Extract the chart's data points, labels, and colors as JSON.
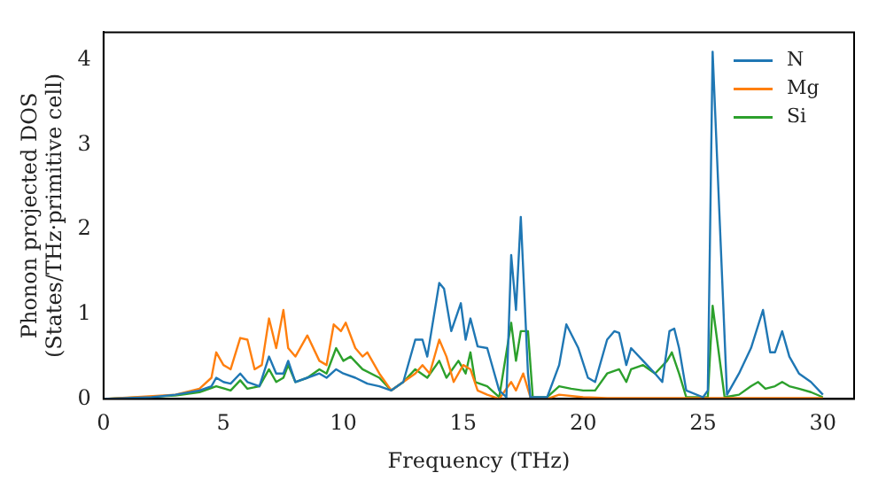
{
  "chart_data": {
    "type": "line",
    "xlabel": "Frequency (THz)",
    "ylabel": "Phonon projected DOS (States/THz·primitive cell)",
    "xlim": [
      0,
      31.3
    ],
    "ylim": [
      0,
      4.33
    ],
    "xticks": [
      0,
      5,
      10,
      15,
      20,
      25,
      30
    ],
    "yticks": [
      0,
      1,
      2,
      3,
      4
    ],
    "grid": false,
    "legend": "top right",
    "marker": "none",
    "line_style": "solid",
    "series": [
      {
        "name": "N",
        "color": "#1f77b4",
        "x": [
          0,
          2,
          3,
          4,
          4.5,
          4.7,
          5,
          5.3,
          5.7,
          6,
          6.5,
          6.9,
          7.2,
          7.5,
          7.7,
          8,
          8.5,
          9,
          9.3,
          9.7,
          10,
          10.5,
          11,
          11.5,
          12,
          12.5,
          13,
          13.3,
          13.5,
          14,
          14.2,
          14.5,
          14.9,
          15.1,
          15.3,
          15.6,
          16,
          16.3,
          16.5,
          16.8,
          17,
          17.2,
          17.4,
          17.7,
          17.8,
          18.5,
          19,
          19.3,
          19.8,
          20.2,
          20.5,
          21,
          21.3,
          21.5,
          21.8,
          22,
          22.5,
          23,
          23.3,
          23.6,
          23.8,
          24,
          24.3,
          25,
          25.2,
          25.4,
          26,
          26.5,
          27,
          27.5,
          27.8,
          28,
          28.3,
          28.6,
          29,
          29.5,
          30
        ],
        "values": [
          0,
          0.02,
          0.05,
          0.1,
          0.15,
          0.25,
          0.2,
          0.18,
          0.3,
          0.2,
          0.15,
          0.5,
          0.3,
          0.3,
          0.45,
          0.2,
          0.25,
          0.3,
          0.25,
          0.35,
          0.3,
          0.25,
          0.18,
          0.15,
          0.1,
          0.2,
          0.7,
          0.7,
          0.5,
          1.37,
          1.3,
          0.8,
          1.13,
          0.7,
          0.95,
          0.62,
          0.6,
          0.3,
          0.1,
          0.02,
          1.7,
          1.05,
          2.15,
          0.3,
          0.02,
          0.02,
          0.4,
          0.88,
          0.6,
          0.25,
          0.2,
          0.7,
          0.8,
          0.78,
          0.4,
          0.6,
          0.45,
          0.3,
          0.2,
          0.8,
          0.83,
          0.6,
          0.1,
          0.02,
          0.1,
          4.1,
          0.05,
          0.3,
          0.6,
          1.05,
          0.55,
          0.55,
          0.8,
          0.5,
          0.3,
          0.2,
          0.05
        ]
      },
      {
        "name": "Mg",
        "color": "#ff7f0e",
        "x": [
          0,
          3,
          4,
          4.5,
          4.7,
          5,
          5.3,
          5.7,
          6,
          6.3,
          6.6,
          6.9,
          7.2,
          7.5,
          7.7,
          8,
          8.5,
          9,
          9.3,
          9.6,
          9.9,
          10.1,
          10.5,
          10.8,
          11,
          11.5,
          12,
          12.5,
          13,
          13.3,
          13.6,
          14,
          14.3,
          14.6,
          15,
          15.3,
          15.6,
          16,
          16.5,
          17,
          17.2,
          17.5,
          17.8,
          18.5,
          19,
          20,
          21,
          30
        ],
        "values": [
          0,
          0.05,
          0.12,
          0.25,
          0.55,
          0.4,
          0.35,
          0.72,
          0.7,
          0.35,
          0.4,
          0.95,
          0.6,
          1.05,
          0.6,
          0.5,
          0.75,
          0.45,
          0.4,
          0.88,
          0.8,
          0.9,
          0.6,
          0.5,
          0.55,
          0.3,
          0.1,
          0.2,
          0.3,
          0.4,
          0.3,
          0.7,
          0.5,
          0.2,
          0.4,
          0.35,
          0.1,
          0.05,
          0,
          0.2,
          0.1,
          0.3,
          0.02,
          0,
          0.05,
          0.02,
          0.01,
          0.01
        ]
      },
      {
        "name": "Si",
        "color": "#2ca02c",
        "x": [
          0,
          3,
          4,
          4.7,
          5.3,
          5.7,
          6,
          6.5,
          6.9,
          7.2,
          7.5,
          7.7,
          8,
          8.5,
          9,
          9.3,
          9.7,
          10,
          10.3,
          10.8,
          11.5,
          12,
          12.5,
          13,
          13.5,
          14,
          14.3,
          14.8,
          15.1,
          15.3,
          15.5,
          16,
          16.5,
          17,
          17.2,
          17.4,
          17.7,
          17.9,
          18.5,
          19,
          19.5,
          20,
          20.5,
          21,
          21.5,
          21.8,
          22,
          22.5,
          23,
          23.5,
          23.7,
          24,
          24.3,
          25.2,
          25.4,
          25.9,
          26.5,
          27,
          27.3,
          27.6,
          28,
          28.3,
          28.6,
          29,
          29.5,
          30
        ],
        "values": [
          0,
          0.04,
          0.08,
          0.15,
          0.1,
          0.22,
          0.12,
          0.15,
          0.35,
          0.2,
          0.25,
          0.4,
          0.2,
          0.25,
          0.35,
          0.3,
          0.6,
          0.45,
          0.5,
          0.35,
          0.25,
          0.1,
          0.2,
          0.35,
          0.25,
          0.45,
          0.25,
          0.45,
          0.3,
          0.55,
          0.2,
          0.15,
          0.02,
          0.9,
          0.45,
          0.8,
          0.8,
          0.02,
          0.02,
          0.15,
          0.12,
          0.1,
          0.1,
          0.3,
          0.35,
          0.2,
          0.35,
          0.4,
          0.3,
          0.45,
          0.55,
          0.3,
          0.02,
          0.02,
          1.1,
          0.02,
          0.05,
          0.15,
          0.2,
          0.12,
          0.15,
          0.2,
          0.15,
          0.12,
          0.08,
          0.02
        ]
      }
    ]
  }
}
